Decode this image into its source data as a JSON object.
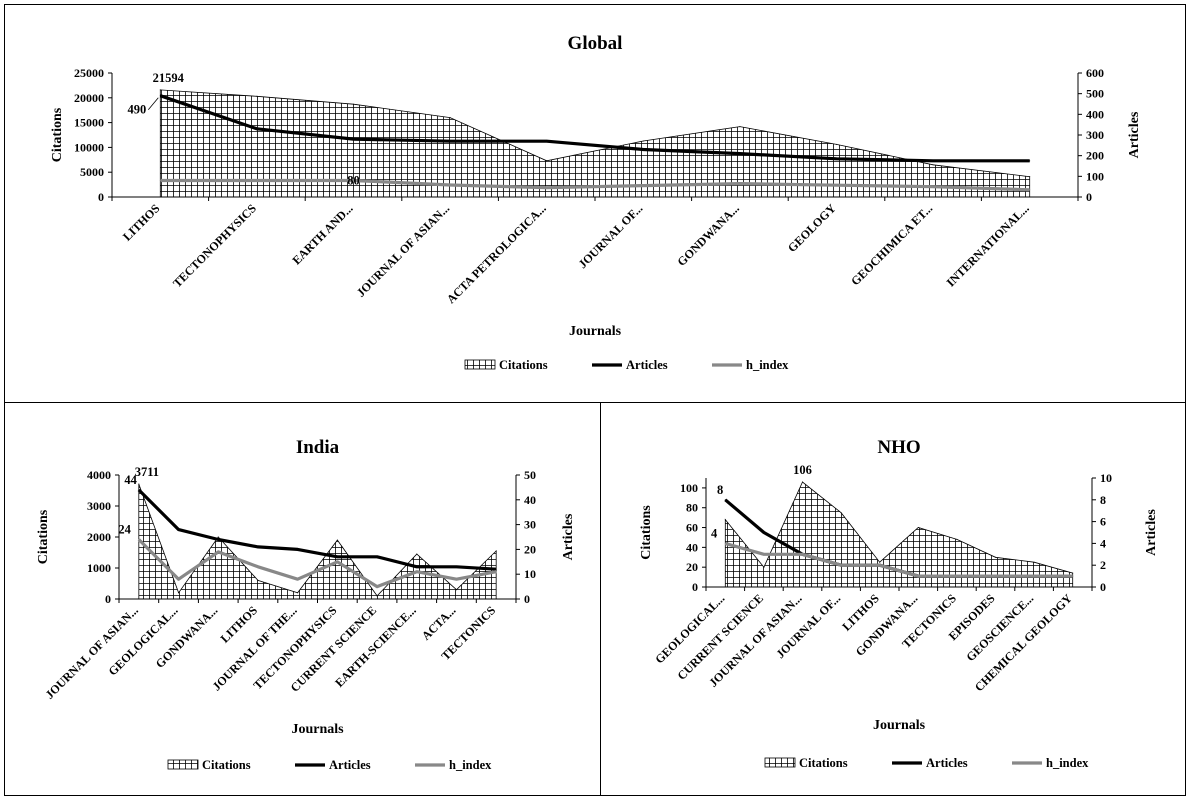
{
  "chart_data": [
    {
      "id": "global",
      "type": "line",
      "title": "Global",
      "xlabel": "Journals",
      "ylabel": "Citations",
      "y2label": "Articles",
      "categories": [
        "LITHOS",
        "TECTONOPHYSICS",
        "EARTH AND...",
        "JOURNAL OF ASIAN...",
        "ACTA PETROLOGICA...",
        "JOURNAL OF...",
        "GONDWANA...",
        "GEOLOGY",
        "GEOCHIMICA ET...",
        "INTERNATIONAL..."
      ],
      "ylim": [
        0,
        25000
      ],
      "yticks": [
        0,
        5000,
        10000,
        15000,
        20000,
        25000
      ],
      "y2lim": [
        0,
        600
      ],
      "y2ticks": [
        0,
        100,
        200,
        300,
        400,
        500,
        600
      ],
      "series": [
        {
          "name": "Citations",
          "style": "area",
          "axis": "left",
          "values": [
            21594,
            20300,
            18700,
            16000,
            7300,
            11300,
            14200,
            10600,
            6500,
            4100
          ]
        },
        {
          "name": "Articles",
          "style": "line",
          "axis": "right",
          "color": "#000000",
          "values": [
            490,
            330,
            280,
            270,
            270,
            230,
            210,
            185,
            175,
            175
          ]
        },
        {
          "name": "h_index",
          "style": "line",
          "axis": "right",
          "color": "#888888",
          "values": [
            80,
            80,
            80,
            58,
            45,
            55,
            65,
            57,
            50,
            35
          ]
        }
      ],
      "annotations": [
        {
          "series": "Citations",
          "index": 0,
          "text": "21594"
        },
        {
          "series": "Articles",
          "index": 0,
          "text": "490"
        },
        {
          "series": "h_index",
          "index": 2,
          "text": "80"
        }
      ],
      "legend": "bottom"
    },
    {
      "id": "india",
      "type": "line",
      "title": "India",
      "xlabel": "Journals",
      "ylabel": "Citations",
      "y2label": "Articles",
      "categories": [
        "JOURNAL OF ASIAN...",
        "GEOLOGICAL...",
        "GONDWANA...",
        "LITHOS",
        "JOURNAL OF THE...",
        "TECTONOPHYSICS",
        "CURRENT SCIENCE",
        "EARTH-SCIENCE...",
        "ACTA...",
        "TECTONICS"
      ],
      "ylim": [
        0,
        4000
      ],
      "yticks": [
        0,
        1000,
        2000,
        3000,
        4000
      ],
      "y2lim": [
        0,
        50
      ],
      "y2ticks": [
        0,
        10,
        20,
        30,
        40,
        50
      ],
      "series": [
        {
          "name": "Citations",
          "style": "area",
          "axis": "left",
          "values": [
            3711,
            200,
            2000,
            600,
            200,
            1900,
            100,
            1450,
            300,
            1550
          ]
        },
        {
          "name": "Articles",
          "style": "line",
          "axis": "right",
          "color": "#000000",
          "values": [
            44,
            28,
            24,
            21,
            20,
            17,
            17,
            13,
            13,
            12
          ]
        },
        {
          "name": "h_index",
          "style": "line",
          "axis": "right",
          "color": "#888888",
          "values": [
            24,
            8,
            19,
            13,
            8,
            15,
            5,
            11,
            8,
            11
          ]
        }
      ],
      "annotations": [
        {
          "series": "Citations",
          "index": 0,
          "text": "3711"
        },
        {
          "series": "Articles",
          "index": 0,
          "text": "44"
        },
        {
          "series": "h_index",
          "index": 0,
          "text": "24"
        }
      ],
      "legend": "bottom"
    },
    {
      "id": "nho",
      "type": "line",
      "title": "NHO",
      "xlabel": "Journals",
      "ylabel": "Citations",
      "y2label": "Articles",
      "categories": [
        "GEOLOGICAL...",
        "CURRENT SCIENCE",
        "JOURNAL OF ASIAN...",
        "JOURNAL OF...",
        "LITHOS",
        "GONDWANA...",
        "TECTONICS",
        "EPISODES",
        "GEOSCIENCE...",
        "CHEMICAL GEOLOGY"
      ],
      "ylim": [
        0,
        110
      ],
      "yticks": [
        0,
        20,
        40,
        60,
        80,
        100
      ],
      "y2lim": [
        0,
        10
      ],
      "y2ticks": [
        0,
        2,
        4,
        6,
        8,
        10
      ],
      "series": [
        {
          "name": "Citations",
          "style": "area",
          "axis": "left",
          "values": [
            68,
            20,
            106,
            75,
            25,
            60,
            48,
            30,
            25,
            14
          ]
        },
        {
          "name": "Articles",
          "style": "line",
          "axis": "right",
          "color": "#000000",
          "values": [
            8,
            5,
            3,
            2,
            2,
            1,
            1,
            1,
            1,
            1
          ]
        },
        {
          "name": "h_index",
          "style": "line",
          "axis": "right",
          "color": "#888888",
          "values": [
            4,
            3,
            3,
            2,
            2,
            1,
            1,
            1,
            1,
            1
          ]
        }
      ],
      "annotations": [
        {
          "series": "Citations",
          "index": 2,
          "text": "106"
        },
        {
          "series": "Articles",
          "index": 0,
          "text": "8"
        },
        {
          "series": "h_index",
          "index": 0,
          "text": "4"
        }
      ],
      "legend": "bottom"
    }
  ]
}
